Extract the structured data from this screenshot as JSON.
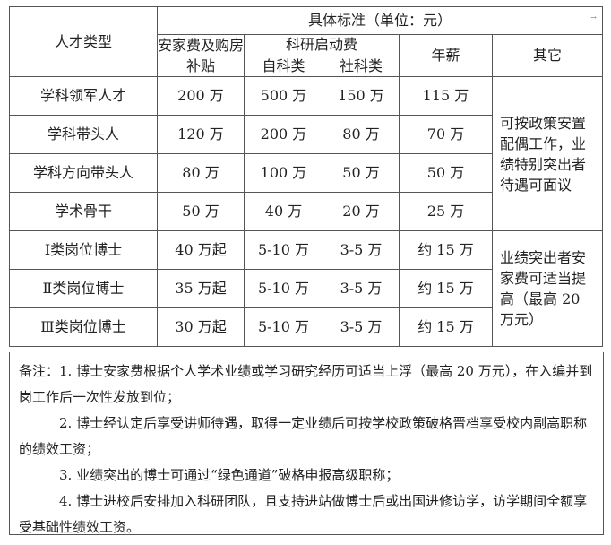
{
  "header": {
    "talent_type": "人才类型",
    "standard": "具体标准（单位：元）",
    "housing": "安家费及购房补贴",
    "research": "科研启动费",
    "science": "自科类",
    "social": "社科类",
    "salary": "年薪",
    "other": "其它"
  },
  "rows": [
    {
      "type": "学科领军人才",
      "housing": "200 万",
      "science": "500 万",
      "social": "150 万",
      "salary": "115 万"
    },
    {
      "type": "学科带头人",
      "housing": "120 万",
      "science": "200 万",
      "social": "80 万",
      "salary": "70 万"
    },
    {
      "type": "学科方向带头人",
      "housing": "80 万",
      "science": "100 万",
      "social": "50 万",
      "salary": "50 万"
    },
    {
      "type": "学术骨干",
      "housing": "50 万",
      "science": "40 万",
      "social": "20 万",
      "salary": "25 万"
    },
    {
      "type": "Ⅰ类岗位博士",
      "housing": "40 万起",
      "science": "5-10 万",
      "social": "3-5 万",
      "salary": "约 15 万"
    },
    {
      "type": "Ⅱ类岗位博士",
      "housing": "35 万起",
      "science": "5-10 万",
      "social": "3-5 万",
      "salary": "约 15 万"
    },
    {
      "type": "Ⅲ类岗位博士",
      "housing": "30 万起",
      "science": "5-10 万",
      "social": "3-5 万",
      "salary": "约 15 万"
    }
  ],
  "other_group1": "可按政策安置配偶工作，业绩特别突出者待遇可面议",
  "other_group2": "业绩突出者安家费可适当提高（最高 20 万元）",
  "notes": [
    "备注：1. 博士安家费根据个人学术业绩或学习研究经历可适当上浮（最高 20 万元），在入编并到岗工作后一次性发放到位；",
    "2. 博士经认定后享受讲师待遇，取得一定业绩后可按学校政策破格晋档享受校内副高职称的绩效工资；",
    "3. 业绩突出的博士可通过“绿色通道”破格申报高级职称；",
    "4. 博士进校后安排加入科研团队，且支持进站做博士后或出国进修访学，访学期间全额享受基础性绩效工资。"
  ]
}
